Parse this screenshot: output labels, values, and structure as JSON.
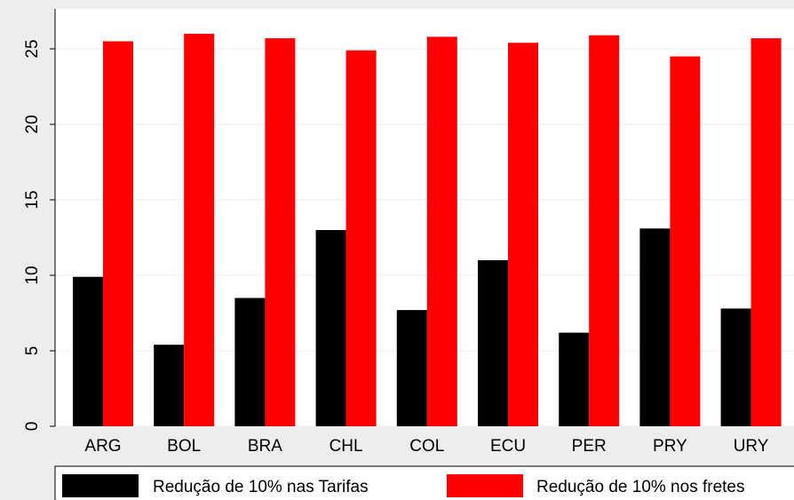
{
  "chart_data": {
    "type": "bar",
    "categories": [
      "ARG",
      "BOL",
      "BRA",
      "CHL",
      "COL",
      "ECU",
      "PER",
      "PRY",
      "URY"
    ],
    "series": [
      {
        "name": "Redução de 10% nas Tarifas",
        "color": "#000000",
        "values": [
          9.9,
          5.4,
          8.5,
          13.0,
          7.7,
          11.0,
          6.2,
          13.1,
          7.8
        ]
      },
      {
        "name": "Redução de 10% nos fretes",
        "color": "#ff0000",
        "values": [
          25.5,
          26.0,
          25.7,
          24.9,
          25.8,
          25.4,
          25.9,
          24.5,
          25.7
        ]
      }
    ],
    "yticks": [
      0,
      5,
      10,
      15,
      20,
      25
    ],
    "ylim": [
      0,
      27.5
    ],
    "grid": true,
    "legend_position": "bottom",
    "plot_background": "#ffffff",
    "page_background": "#ededed"
  }
}
